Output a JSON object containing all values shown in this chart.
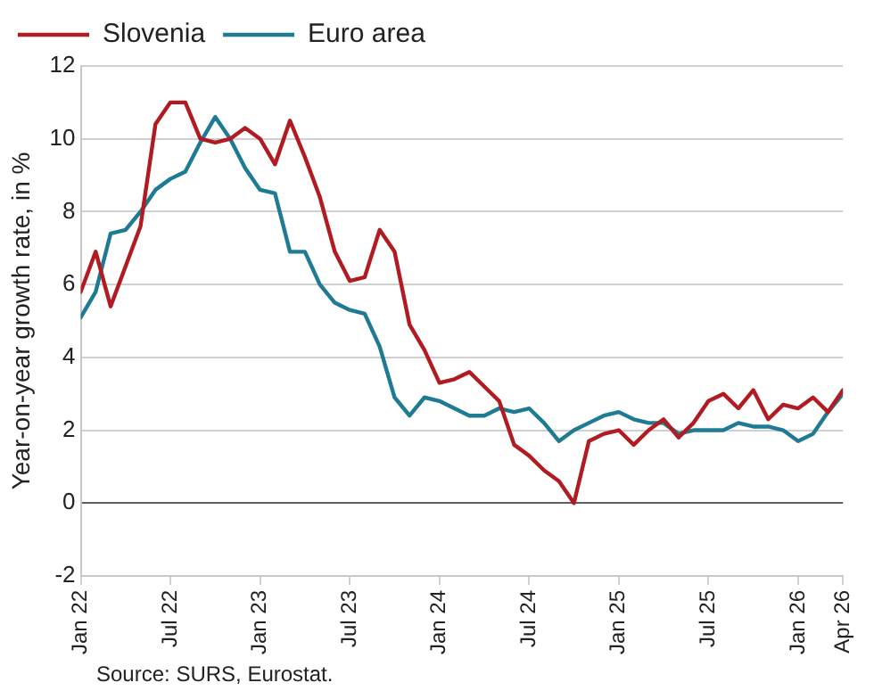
{
  "chart_data": {
    "type": "line",
    "ylabel": "Year-on-year growth rate, in %",
    "annotations": [
      "Source: SURS, Eurostat."
    ],
    "x": [
      "2022-01",
      "2022-02",
      "2022-03",
      "2022-04",
      "2022-05",
      "2022-06",
      "2022-07",
      "2022-08",
      "2022-09",
      "2022-10",
      "2022-11",
      "2022-12",
      "2023-01",
      "2023-02",
      "2023-03",
      "2023-04",
      "2023-05",
      "2023-06",
      "2023-07",
      "2023-08",
      "2023-09",
      "2023-10",
      "2023-11",
      "2023-12",
      "2024-01",
      "2024-02",
      "2024-03",
      "2024-04",
      "2024-05",
      "2024-06",
      "2024-07",
      "2024-08",
      "2024-09",
      "2024-10",
      "2024-11",
      "2024-12",
      "2025-01",
      "2025-02",
      "2025-03",
      "2025-04",
      "2025-05",
      "2025-06",
      "2025-07",
      "2025-08",
      "2025-09",
      "2025-10",
      "2025-11",
      "2025-12",
      "2026-01",
      "2026-02",
      "2026-03",
      "2026-04"
    ],
    "series": [
      {
        "name": "Slovenia",
        "color": "#b01c22",
        "values": [
          5.8,
          6.9,
          5.4,
          6.5,
          7.6,
          10.4,
          11.0,
          11.0,
          10.0,
          9.9,
          10.0,
          10.3,
          10.0,
          9.3,
          10.5,
          9.5,
          8.4,
          6.9,
          6.1,
          6.2,
          7.5,
          6.9,
          4.9,
          4.2,
          3.3,
          3.4,
          3.6,
          3.2,
          2.8,
          1.6,
          1.3,
          0.9,
          0.6,
          0.0,
          1.7,
          1.9,
          2.0,
          1.6,
          2.0,
          2.3,
          1.8,
          2.2,
          2.8,
          3.0,
          2.6,
          3.1,
          2.3,
          2.7,
          2.6,
          2.9,
          2.5,
          3.1
        ]
      },
      {
        "name": "Euro area",
        "color": "#1f7a94",
        "values": [
          5.1,
          5.8,
          7.4,
          7.5,
          8.0,
          8.6,
          8.9,
          9.1,
          9.9,
          10.6,
          10.0,
          9.2,
          8.6,
          8.5,
          6.9,
          6.9,
          6.0,
          5.5,
          5.3,
          5.2,
          4.3,
          2.9,
          2.4,
          2.9,
          2.8,
          2.6,
          2.4,
          2.4,
          2.6,
          2.5,
          2.6,
          2.2,
          1.7,
          2.0,
          2.2,
          2.4,
          2.5,
          2.3,
          2.2,
          2.2,
          1.9,
          2.0,
          2.0,
          2.0,
          2.2,
          2.1,
          2.1,
          2.0,
          1.7,
          1.9,
          2.5,
          3.0
        ]
      }
    ],
    "xlim": [
      "2022-01",
      "2026-04"
    ],
    "xticks": [
      {
        "value": "2022-01",
        "label": "Jan 22"
      },
      {
        "value": "2022-07",
        "label": "Jul 22"
      },
      {
        "value": "2023-01",
        "label": "Jan 23"
      },
      {
        "value": "2023-07",
        "label": "Jul 23"
      },
      {
        "value": "2024-01",
        "label": "Jan 24"
      },
      {
        "value": "2024-07",
        "label": "Jul 24"
      },
      {
        "value": "2025-01",
        "label": "Jan 25"
      },
      {
        "value": "2025-07",
        "label": "Jul 25"
      },
      {
        "value": "2026-01",
        "label": "Jan 26"
      },
      {
        "value": "2026-04",
        "label": "Apr 26"
      }
    ],
    "ylim": [
      -2,
      12
    ],
    "yticks": [
      -2,
      0,
      2,
      4,
      6,
      8,
      10,
      12
    ],
    "grid": "y",
    "legend": "top left",
    "marker": "none",
    "line_style": "solid"
  }
}
